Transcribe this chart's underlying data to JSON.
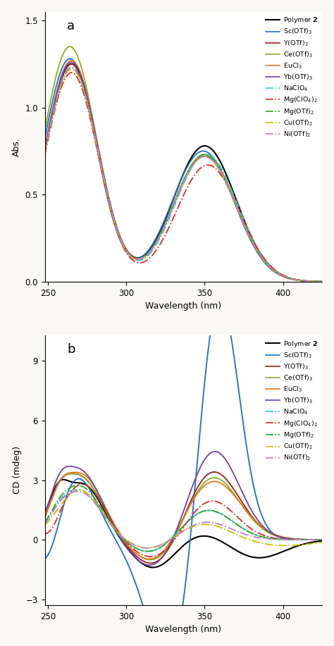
{
  "title_a": "a",
  "title_b": "b",
  "xlabel": "Wavelength (nm)",
  "ylabel_a": "Abs.",
  "ylabel_b": "CD (mdeg)",
  "xlim": [
    248,
    425
  ],
  "ylim_a": [
    0,
    1.55
  ],
  "ylim_b": [
    -3.3,
    10.3
  ],
  "xticks": [
    250,
    300,
    350,
    400
  ],
  "yticks_a": [
    0,
    0.5,
    1.0,
    1.5
  ],
  "yticks_b": [
    -3,
    0,
    3,
    6,
    9
  ],
  "legend_labels": [
    "Polymer 2",
    "Sc(OTf)$_3$",
    "Y(OTf)$_3$",
    "Ce(OTf)$_3$",
    "EuCl$_3$",
    "Yb(OTf)$_3$",
    "NaClO$_4$",
    "Mg(ClO$_4$)$_2$",
    "Mg(OTf)$_2$",
    "Cu(OTf)$_2$",
    "Ni(OTf)$_2$"
  ],
  "colors": [
    "#000000",
    "#1a6fcc",
    "#9b2020",
    "#8aaf20",
    "#e07818",
    "#7040a0",
    "#30c8d0",
    "#e02828",
    "#28a828",
    "#c8c000",
    "#c080c0"
  ],
  "linestyles": [
    "-",
    "-",
    "-",
    "-",
    "-",
    "-",
    "-.",
    "-.",
    "-.",
    "-.",
    "-."
  ],
  "linewidths": [
    1.5,
    1.3,
    1.3,
    1.3,
    1.3,
    1.3,
    1.3,
    1.3,
    1.3,
    1.3,
    1.3
  ],
  "background": "#ffffff",
  "figure_bg": "#faf8f5"
}
